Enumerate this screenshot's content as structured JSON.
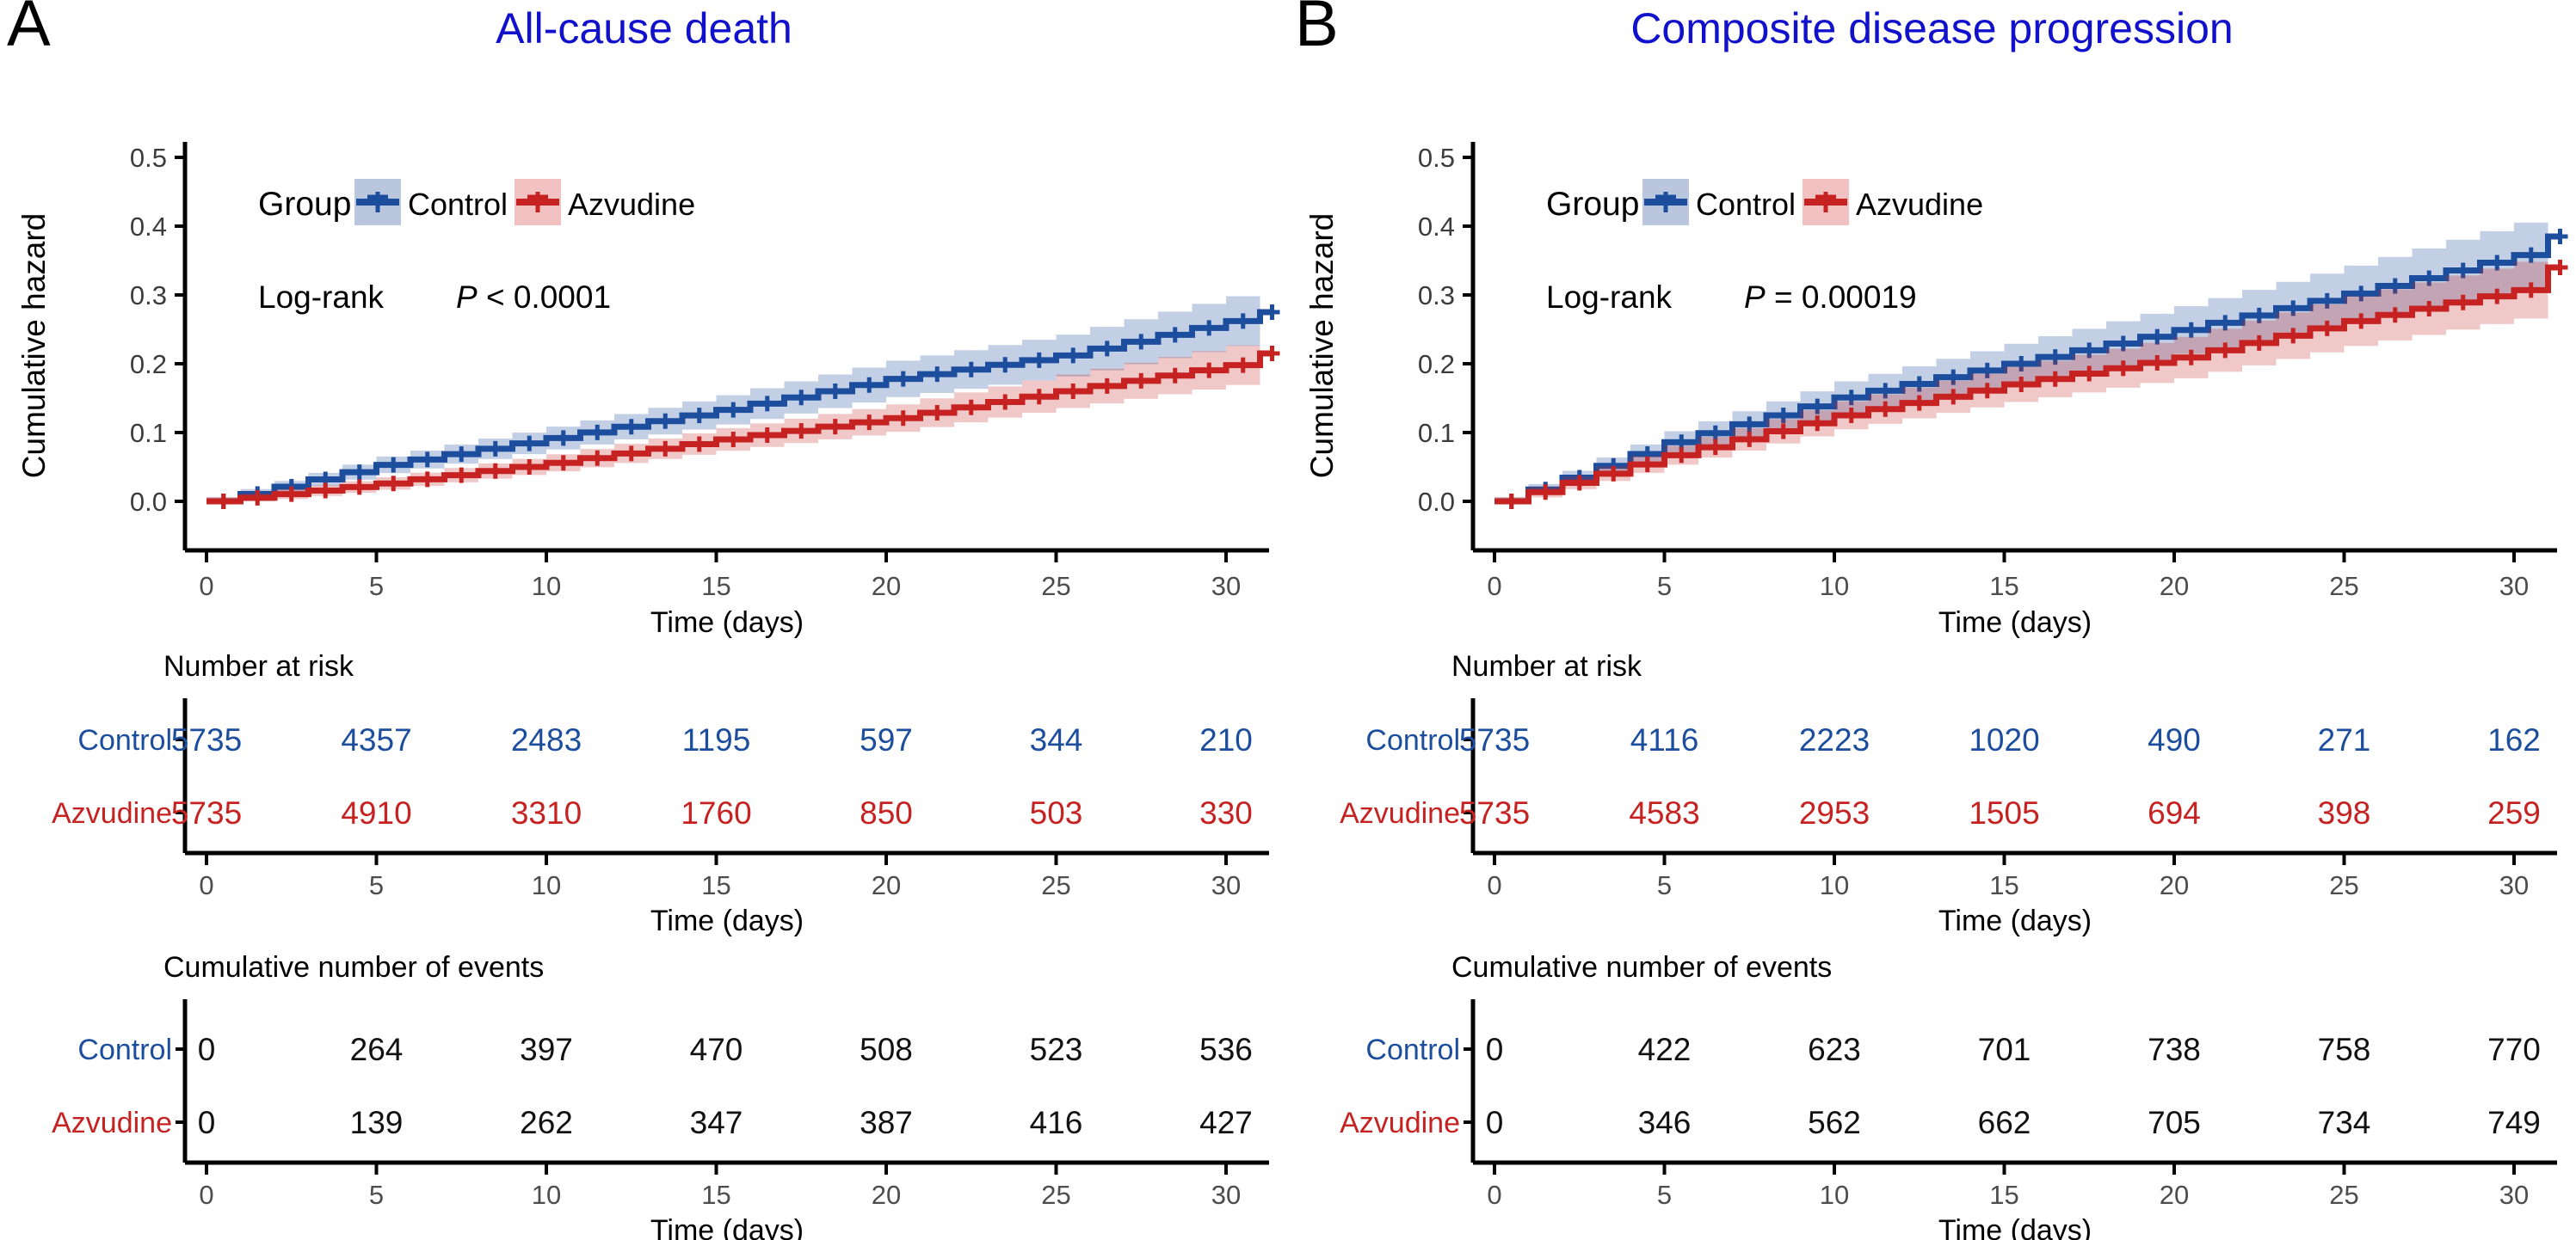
{
  "chart_data": [
    {
      "type": "line",
      "subtype": "step-cumulative-hazard",
      "panel_label": "A",
      "title": "All-cause death",
      "title_color": "#1111cc",
      "xlabel": "Time (days)",
      "ylabel": "Cumulative hazard",
      "xlim": [
        0,
        31
      ],
      "ylim": [
        0,
        0.5
      ],
      "xticks": [
        0,
        5,
        10,
        15,
        20,
        25,
        30
      ],
      "yticks": [
        0.0,
        0.1,
        0.2,
        0.3,
        0.4,
        0.5
      ],
      "grid": false,
      "legend": {
        "title": "Group",
        "position": "top-left-inside"
      },
      "annotation": {
        "label": "Log-rank",
        "p_symbol": "P",
        "p_rest": " < 0.0001"
      },
      "series": [
        {
          "name": "Control",
          "color": "#1d4e9e",
          "band_color": "rgba(29,78,158,0.27)",
          "key_bg": "#b9c6de",
          "x": [
            0,
            5,
            10,
            15,
            20,
            25,
            30,
            31
          ],
          "values": [
            0,
            0.053,
            0.092,
            0.133,
            0.178,
            0.212,
            0.262,
            0.275
          ]
        },
        {
          "name": "Azvudine",
          "color": "#c62222",
          "band_color": "rgba(198,34,34,0.25)",
          "key_bg": "#f2c2c2",
          "x": [
            0,
            5,
            10,
            15,
            20,
            25,
            30,
            31
          ],
          "values": [
            0,
            0.026,
            0.056,
            0.09,
            0.121,
            0.16,
            0.198,
            0.215
          ]
        }
      ],
      "risk_table": {
        "title": "Number at risk",
        "time": [
          0,
          5,
          10,
          15,
          20,
          25,
          30
        ],
        "rows": [
          {
            "label": "Control",
            "color": "#1d4e9e",
            "values": [
              5735,
              4357,
              2483,
              1195,
              597,
              344,
              210
            ]
          },
          {
            "label": "Azvudine",
            "color": "#c62222",
            "values": [
              5735,
              4910,
              3310,
              1760,
              850,
              503,
              330
            ]
          }
        ]
      },
      "events_table": {
        "title": "Cumulative number of events",
        "time": [
          0,
          5,
          10,
          15,
          20,
          25,
          30
        ],
        "rows": [
          {
            "label": "Control",
            "color": "#1d4e9e",
            "values": [
              0,
              264,
              397,
              470,
              508,
              523,
              536
            ]
          },
          {
            "label": "Azvudine",
            "color": "#c62222",
            "values": [
              0,
              139,
              262,
              347,
              387,
              416,
              427
            ]
          }
        ]
      }
    },
    {
      "type": "line",
      "subtype": "step-cumulative-hazard",
      "panel_label": "B",
      "title": "Composite disease progression",
      "title_color": "#1111cc",
      "xlabel": "Time (days)",
      "ylabel": "Cumulative hazard",
      "xlim": [
        0,
        31
      ],
      "ylim": [
        0,
        0.5
      ],
      "xticks": [
        0,
        5,
        10,
        15,
        20,
        25,
        30
      ],
      "yticks": [
        0.0,
        0.1,
        0.2,
        0.3,
        0.4,
        0.5
      ],
      "grid": false,
      "legend": {
        "title": "Group",
        "position": "top-left-inside"
      },
      "annotation": {
        "label": "Log-rank",
        "p_symbol": "P",
        "p_rest": " = 0.00019"
      },
      "series": [
        {
          "name": "Control",
          "color": "#1d4e9e",
          "band_color": "rgba(29,78,158,0.27)",
          "key_bg": "#b9c6de",
          "x": [
            0,
            5,
            10,
            15,
            20,
            25,
            30,
            31
          ],
          "values": [
            0,
            0.086,
            0.151,
            0.2,
            0.249,
            0.302,
            0.358,
            0.385
          ]
        },
        {
          "name": "Azvudine",
          "color": "#c62222",
          "band_color": "rgba(198,34,34,0.25)",
          "key_bg": "#f2c2c2",
          "x": [
            0,
            5,
            10,
            15,
            20,
            25,
            30,
            31
          ],
          "values": [
            0,
            0.067,
            0.125,
            0.17,
            0.209,
            0.262,
            0.307,
            0.34
          ]
        }
      ],
      "risk_table": {
        "title": "Number at risk",
        "time": [
          0,
          5,
          10,
          15,
          20,
          25,
          30
        ],
        "rows": [
          {
            "label": "Control",
            "color": "#1d4e9e",
            "values": [
              5735,
              4116,
              2223,
              1020,
              490,
              271,
              162
            ]
          },
          {
            "label": "Azvudine",
            "color": "#c62222",
            "values": [
              5735,
              4583,
              2953,
              1505,
              694,
              398,
              259
            ]
          }
        ]
      },
      "events_table": {
        "title": "Cumulative number of events",
        "time": [
          0,
          5,
          10,
          15,
          20,
          25,
          30
        ],
        "rows": [
          {
            "label": "Control",
            "color": "#1d4e9e",
            "values": [
              0,
              422,
              623,
              701,
              738,
              758,
              770
            ]
          },
          {
            "label": "Azvudine",
            "color": "#c62222",
            "values": [
              0,
              346,
              562,
              662,
              705,
              734,
              749
            ]
          }
        ]
      }
    }
  ]
}
